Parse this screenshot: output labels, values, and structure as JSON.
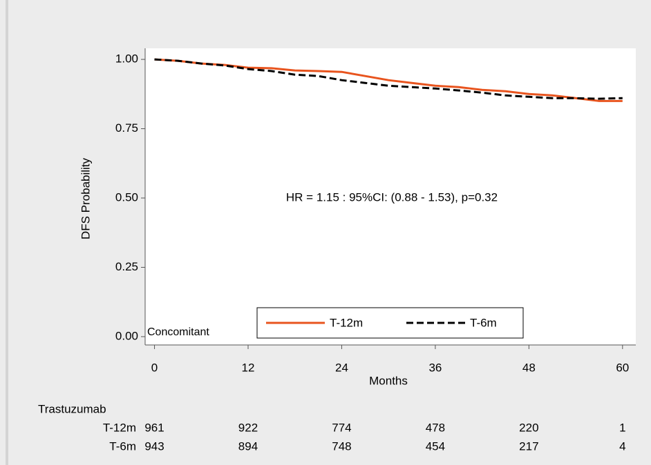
{
  "chart_data": {
    "type": "line",
    "y_label": "DFS Probability",
    "x_label": "Months",
    "annotation": "HR = 1.15 : 95%CI: (0.88 - 1.53), p=0.32",
    "panel_label": "Concomitant",
    "x": [
      0,
      3,
      6,
      9,
      12,
      15,
      18,
      21,
      24,
      27,
      30,
      33,
      36,
      39,
      42,
      45,
      48,
      51,
      54,
      57,
      60
    ],
    "series": [
      {
        "name": "T-12m",
        "color": "#e8541e",
        "dash": false,
        "values": [
          1.0,
          0.995,
          0.985,
          0.98,
          0.97,
          0.968,
          0.96,
          0.958,
          0.955,
          0.94,
          0.925,
          0.915,
          0.905,
          0.9,
          0.89,
          0.885,
          0.875,
          0.87,
          0.86,
          0.85,
          0.85
        ]
      },
      {
        "name": "T-6m",
        "color": "#000000",
        "dash": true,
        "values": [
          1.0,
          0.995,
          0.985,
          0.978,
          0.965,
          0.958,
          0.945,
          0.94,
          0.925,
          0.915,
          0.905,
          0.9,
          0.895,
          0.888,
          0.88,
          0.87,
          0.865,
          0.86,
          0.86,
          0.858,
          0.86
        ]
      }
    ],
    "xlim": [
      -1.2,
      61.7
    ],
    "ylim": [
      -0.03,
      1.04
    ],
    "xticks": [
      0,
      12,
      24,
      36,
      48,
      60
    ],
    "yticks": [
      {
        "value": 0,
        "label": "0.00"
      },
      {
        "value": 0.25,
        "label": "0.25"
      },
      {
        "value": 0.5,
        "label": "0.50"
      },
      {
        "value": 0.75,
        "label": "0.75"
      },
      {
        "value": 1,
        "label": "1.00"
      }
    ],
    "legend": "bottom",
    "risk_table": {
      "title": "Trastuzumab",
      "rows": [
        {
          "name": "T-12m",
          "color": "#e8541e",
          "counts": [
            961,
            922,
            774,
            478,
            220,
            1
          ]
        },
        {
          "name": "T-6m",
          "color": "#000000",
          "counts": [
            943,
            894,
            748,
            454,
            217,
            4
          ]
        }
      ]
    }
  }
}
